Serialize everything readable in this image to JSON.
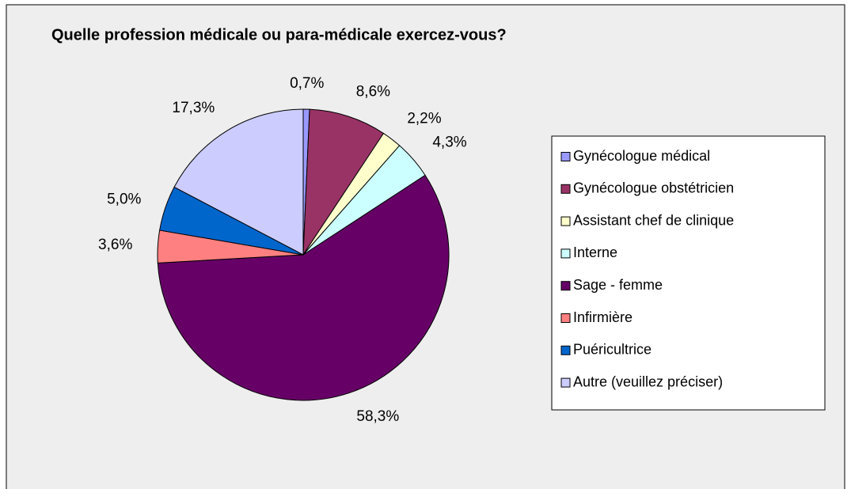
{
  "chart_data": {
    "type": "pie",
    "title": "Quelle profession médicale ou para-médicale exercez-vous?",
    "categories": [
      "Gynécologue médical",
      "Gynécologue obstétricien",
      "Assistant chef de clinique",
      "Interne",
      "Sage - femme",
      "Infirmière",
      "Puéricultrice",
      "Autre (veuillez préciser)"
    ],
    "values": [
      0.7,
      8.6,
      2.2,
      4.3,
      58.3,
      3.6,
      5.0,
      17.3
    ],
    "value_labels": [
      "0,7%",
      "8,6%",
      "2,2%",
      "4,3%",
      "58,3%",
      "3,6%",
      "5,0%",
      "17,3%"
    ],
    "colors": [
      "#9999ff",
      "#993366",
      "#ffffcc",
      "#ccffff",
      "#660066",
      "#ff8080",
      "#0066cc",
      "#ccccff"
    ],
    "legend": "right"
  }
}
